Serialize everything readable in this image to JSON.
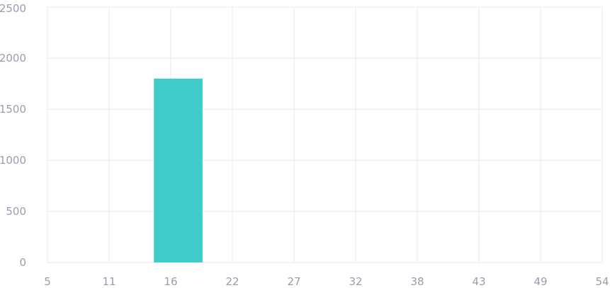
{
  "chart_data": {
    "type": "bar",
    "x_ticks": [
      "5",
      "11",
      "16",
      "22",
      "27",
      "32",
      "38",
      "43",
      "49",
      "54"
    ],
    "y_ticks": [
      "0",
      "500",
      "1000",
      "1500",
      "2000",
      "2500"
    ],
    "ylim": [
      0,
      2500
    ],
    "bars": [
      {
        "x_start": 14.4,
        "x_end": 18.7,
        "value": 1800
      }
    ],
    "title": "",
    "xlabel": "",
    "ylabel": "",
    "grid": true,
    "colors": {
      "bar": "#40cbca",
      "grid": "#e9e9ef",
      "tick_label": "#9a9cae"
    }
  }
}
